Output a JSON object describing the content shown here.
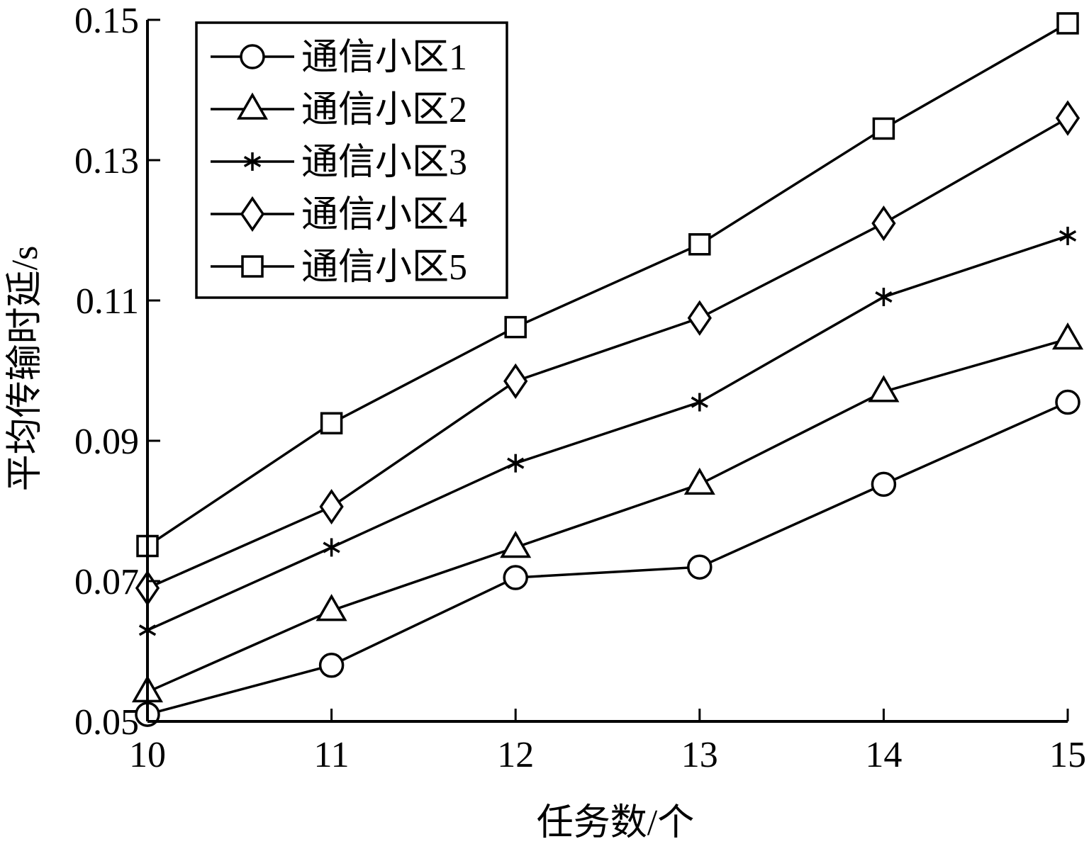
{
  "chart_data": {
    "type": "line",
    "xlabel": "任务数/个",
    "ylabel": "平均传输时延/s",
    "x": [
      10,
      11,
      12,
      13,
      14,
      15
    ],
    "x_ticks": [
      "10",
      "11",
      "12",
      "13",
      "14",
      "15"
    ],
    "y_ticks": [
      "0.05",
      "0.07",
      "0.09",
      "0.11",
      "0.13",
      "0.15"
    ],
    "xlim": [
      10,
      15
    ],
    "ylim": [
      0.05,
      0.15
    ],
    "grid": false,
    "legend_position": "top-left",
    "series": [
      {
        "name": "通信小区1",
        "marker": "circle",
        "values": [
          0.051,
          0.058,
          0.0705,
          0.072,
          0.0838,
          0.0955
        ]
      },
      {
        "name": "通信小区2",
        "marker": "triangle",
        "values": [
          0.0542,
          0.0658,
          0.0748,
          0.0838,
          0.097,
          0.1045
        ]
      },
      {
        "name": "通信小区3",
        "marker": "star",
        "values": [
          0.063,
          0.0748,
          0.0868,
          0.0955,
          0.1105,
          0.1192
        ]
      },
      {
        "name": "通信小区4",
        "marker": "diamond",
        "values": [
          0.069,
          0.0806,
          0.0985,
          0.1075,
          0.121,
          0.136
        ]
      },
      {
        "name": "通信小区5",
        "marker": "square",
        "values": [
          0.075,
          0.0925,
          0.1062,
          0.118,
          0.1345,
          0.1495
        ]
      }
    ]
  }
}
